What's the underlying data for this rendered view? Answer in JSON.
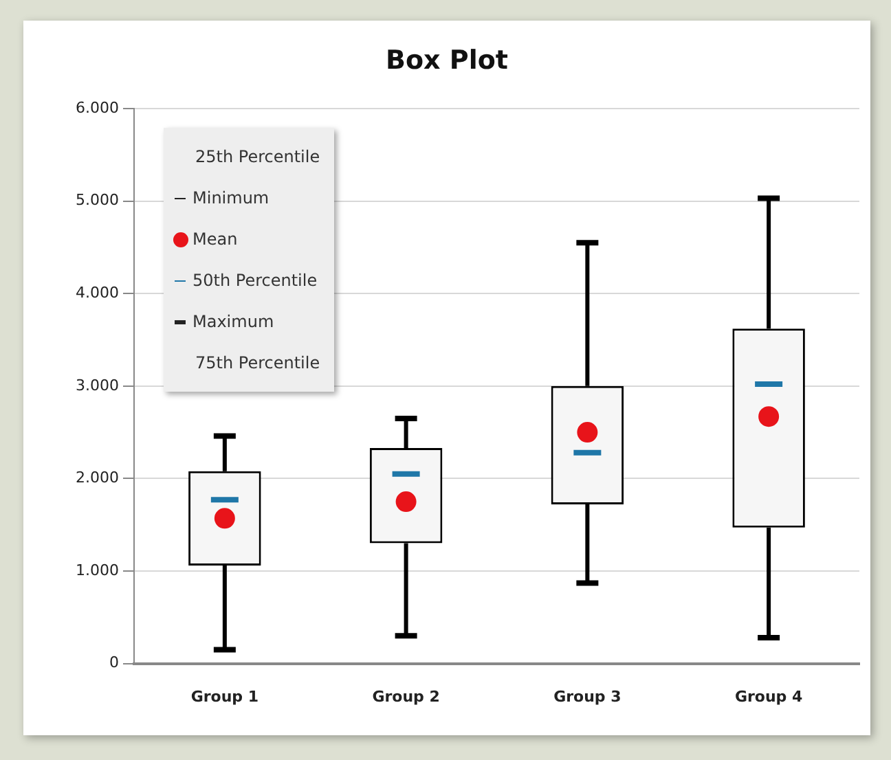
{
  "chart_data": {
    "type": "box",
    "title": "Box Plot",
    "categories": [
      "Group 1",
      "Group 2",
      "Group 3",
      "Group 4"
    ],
    "boxes": [
      {
        "low": 150,
        "q1": 1060,
        "median": 1770,
        "q3": 2080,
        "high": 2460,
        "mean": 1570
      },
      {
        "low": 300,
        "q1": 1300,
        "median": 2050,
        "q3": 2330,
        "high": 2650,
        "mean": 1750
      },
      {
        "low": 870,
        "q1": 1720,
        "median": 2280,
        "q3": 3000,
        "high": 4550,
        "mean": 2500
      },
      {
        "low": 280,
        "q1": 1470,
        "median": 3020,
        "q3": 3620,
        "high": 5030,
        "mean": 2670
      }
    ],
    "ylim": [
      0,
      6000
    ],
    "yticks": [
      0,
      {
        "value": 1000,
        "label": "1.000"
      },
      {
        "value": 2000,
        "label": "2.000"
      },
      {
        "value": 3000,
        "label": "3.000"
      },
      {
        "value": 4000,
        "label": "4.000"
      },
      {
        "value": 5000,
        "label": "5.000"
      },
      {
        "value": 6000,
        "label": "6.000"
      }
    ],
    "grid": "y",
    "annotations": [
      "25th Percentile",
      "Minimum",
      "Mean",
      "50th Percentile",
      "Maximum",
      "75th Percentile"
    ]
  }
}
